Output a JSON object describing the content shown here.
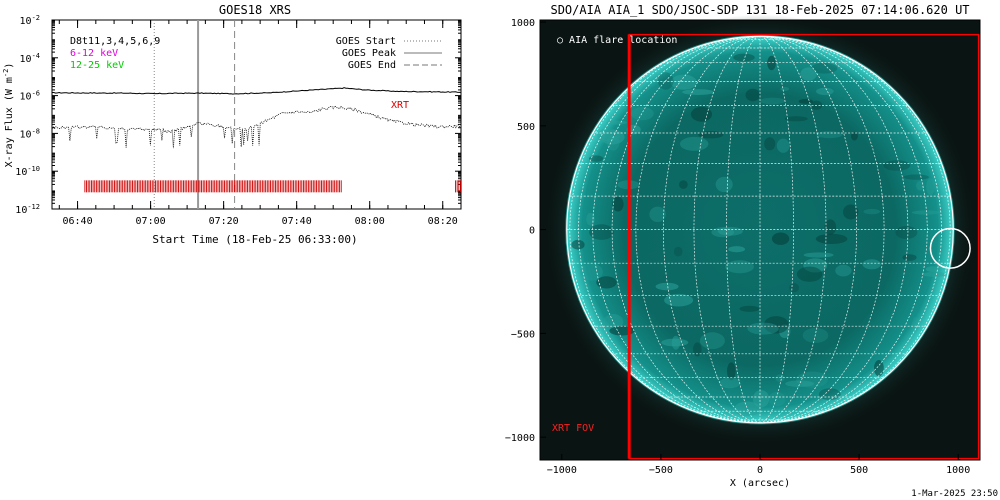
{
  "chart_data": [
    {
      "type": "line",
      "title": "GOES18 XRS",
      "xlabel": "Start Time (18-Feb-25 06:33:00)",
      "ylabel": "X-ray Flux (W m",
      "ylabel_sup": "-2",
      "ylabel_end": ")",
      "x_ticks": [
        "06:40",
        "07:00",
        "07:20",
        "07:40",
        "08:00",
        "08:20"
      ],
      "x_tick_minutes": [
        7,
        27,
        47,
        67,
        87,
        107
      ],
      "x_range_minutes": [
        0,
        112
      ],
      "y_scale": "log",
      "ylim_exp": [
        -12,
        -2
      ],
      "y_ticks_exp": [
        -12,
        -10,
        -8,
        -6,
        -4,
        -2
      ],
      "legend_left": [
        {
          "text": "D8t11,3,4,5,6,9",
          "color": "#000000"
        },
        {
          "text": "6-12 keV",
          "color": "#dd00dd"
        },
        {
          "text": "12-25 keV",
          "color": "#00cc00"
        }
      ],
      "legend_right": [
        {
          "text": "GOES Start",
          "style": "dotted"
        },
        {
          "text": "GOES Peak",
          "style": "solid"
        },
        {
          "text": "GOES End",
          "style": "dashed"
        }
      ],
      "markers_minutes": {
        "start": 28,
        "peak": 40,
        "end": 50
      },
      "xrt_label": "XRT",
      "xrt_bar_color": "#cc0000",
      "xrt_intervals_minutes": [
        [
          9,
          79.5
        ],
        [
          110.5,
          112
        ]
      ],
      "series": [
        {
          "line_style": "solid",
          "minutes": [
            0,
            20,
            28,
            33,
            40,
            50,
            60,
            65,
            70,
            75,
            80,
            86,
            95,
            105,
            112
          ],
          "log_flux": [
            -5.85,
            -5.87,
            -5.9,
            -5.88,
            -5.87,
            -5.9,
            -5.85,
            -5.78,
            -5.72,
            -5.66,
            -5.6,
            -5.7,
            -5.78,
            -5.8,
            -5.82
          ]
        },
        {
          "line_style": "dotted",
          "minutes": [
            0,
            10,
            20,
            28,
            33,
            40,
            45,
            50,
            55,
            58,
            63,
            67,
            71,
            74,
            78,
            83,
            88,
            93,
            100,
            106,
            112
          ],
          "log_flux": [
            -7.7,
            -7.65,
            -7.75,
            -7.8,
            -7.9,
            -7.45,
            -7.6,
            -7.72,
            -7.7,
            -7.4,
            -6.95,
            -6.85,
            -6.9,
            -6.7,
            -6.6,
            -6.75,
            -7.05,
            -7.35,
            -7.55,
            -7.65,
            -7.6
          ]
        }
      ]
    },
    {
      "type": "image",
      "title": "SDO/AIA AIA_1 SDO/JSOC-SDP 131 18-Feb-2025 07:14:06.620 UT",
      "xlabel": "X (arcsec)",
      "ylabel": "",
      "x_ticks": [
        -1000,
        -500,
        0,
        500,
        1000
      ],
      "y_ticks": [
        1000,
        500,
        0,
        -500,
        -1000
      ],
      "x_range": [
        -1110,
        1110
      ],
      "y_range": [
        -1110,
        1010
      ],
      "colors": {
        "disk": "#0b7b72",
        "limb": "#29c9c1",
        "grid": "#ffffff",
        "fov": "#ff0000"
      },
      "solar_radius_arcsec": 975,
      "flare_location": {
        "label": "AIA flare location",
        "x": 960,
        "y": -90,
        "r_arcsec": 100
      },
      "xrt_fov": {
        "label": "XRT FOV",
        "x_range": [
          -660,
          1110
        ],
        "y_range": [
          -1110,
          940
        ]
      },
      "footer": "1-Mar-2025 23:50"
    }
  ]
}
